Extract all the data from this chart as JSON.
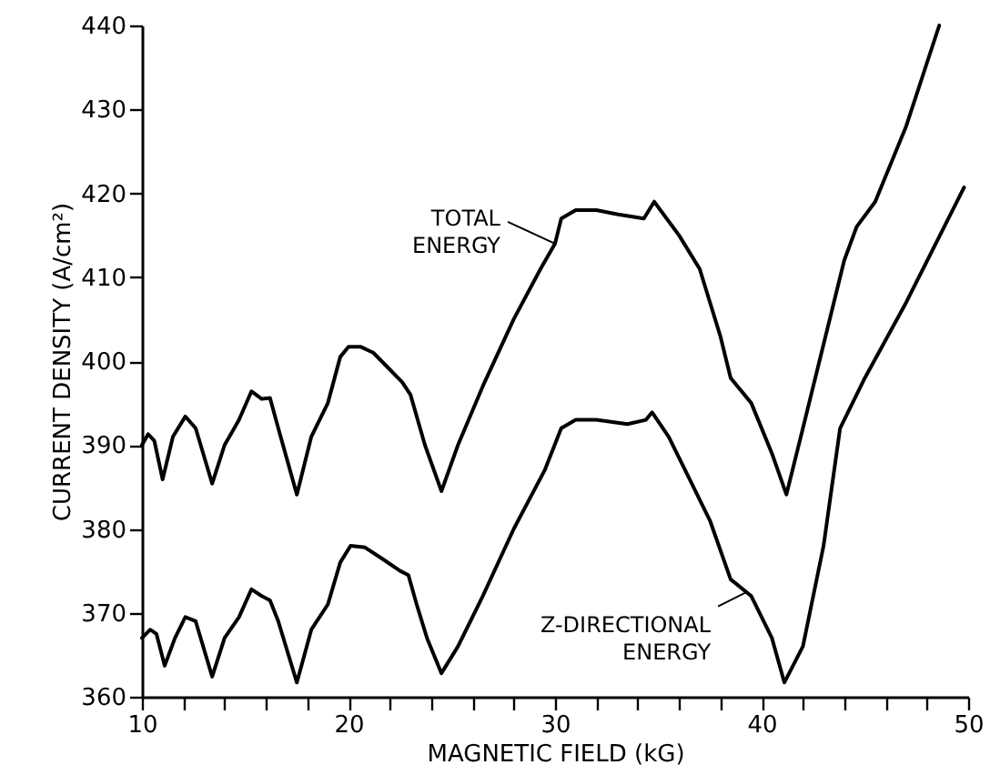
{
  "chart_data": {
    "type": "line",
    "xlabel": "MAGNETIC FIELD (kG)",
    "ylabel": "CURRENT DENSITY (A/cm²)",
    "xlim": [
      10,
      50
    ],
    "ylim": [
      360,
      440
    ],
    "xticks": [
      10,
      {
        "value": 12,
        "label": null
      },
      {
        "value": 14,
        "label": null
      },
      {
        "value": 16,
        "label": null
      },
      {
        "value": 18,
        "label": null
      },
      20,
      {
        "value": 22,
        "label": null
      },
      {
        "value": 24,
        "label": null
      },
      {
        "value": 26,
        "label": null
      },
      {
        "value": 28,
        "label": null
      },
      30,
      {
        "value": 32,
        "label": null
      },
      {
        "value": 34,
        "label": null
      },
      {
        "value": 36,
        "label": null
      },
      {
        "value": 38,
        "label": null
      },
      40,
      {
        "value": 42,
        "label": null
      },
      {
        "value": 44,
        "label": null
      },
      {
        "value": 46,
        "label": null
      },
      {
        "value": 48,
        "label": null
      },
      50
    ],
    "yticks": [
      360,
      370,
      380,
      390,
      400,
      410,
      420,
      430,
      440
    ],
    "grid": false,
    "legend": false,
    "marker": "none",
    "line_style": "solid",
    "series": [
      {
        "color": "#000000",
        "x": [
          10,
          10.3,
          10.6,
          11,
          11.5,
          12.1,
          12.6,
          13.4,
          14,
          14.7,
          15.3,
          15.8,
          16.2,
          16.6,
          17.5,
          18.2,
          19,
          19.6,
          20,
          20.6,
          21.2,
          22,
          22.6,
          23,
          23.7,
          24.5,
          25.3,
          26.5,
          28,
          29.3,
          30,
          30.3,
          31,
          32,
          33,
          34.3,
          34.8,
          36,
          37,
          38,
          38.5,
          39.5,
          40.5,
          41.2,
          42,
          43,
          44,
          44.6,
          45.5,
          47,
          48.6
        ],
        "values": [
          390,
          391.3,
          390.5,
          385.9,
          391,
          393.4,
          392,
          385.4,
          390,
          393,
          396.4,
          395.5,
          395.6,
          392,
          384.1,
          391,
          395,
          400.5,
          401.7,
          401.7,
          401,
          399,
          397.5,
          396,
          390,
          384.5,
          390,
          397,
          405,
          411,
          414,
          417,
          418,
          418,
          417.5,
          417,
          419,
          415,
          411,
          403,
          398,
          395,
          389,
          384.1,
          392,
          402,
          412,
          416,
          419,
          428,
          440
        ]
      },
      {
        "color": "#000000",
        "x": [
          10,
          10.4,
          10.7,
          11.1,
          11.6,
          12.1,
          12.6,
          13.4,
          14,
          14.7,
          15.3,
          15.8,
          16.2,
          16.6,
          17.5,
          18.2,
          19,
          19.6,
          20.1,
          20.8,
          21.6,
          22.5,
          22.9,
          23.3,
          23.8,
          24.5,
          25.3,
          26.5,
          28,
          29.5,
          30.3,
          31,
          32,
          33.5,
          34.4,
          34.7,
          35.5,
          36.5,
          37.5,
          38.5,
          39.5,
          40.5,
          41.1,
          42,
          43,
          43.8,
          45,
          47,
          49.8
        ],
        "values": [
          367,
          368,
          367.5,
          363.7,
          367,
          369.5,
          369,
          362.4,
          367,
          369.5,
          372.8,
          372,
          371.5,
          369,
          361.7,
          368,
          371,
          376,
          378,
          377.8,
          376.5,
          375,
          374.5,
          371,
          367,
          362.8,
          366,
          372,
          380,
          387,
          392,
          393,
          393,
          392.5,
          393,
          393.9,
          391,
          386,
          381,
          374,
          372,
          367,
          361.7,
          366,
          378,
          392,
          398,
          407,
          420.7
        ]
      }
    ],
    "annotations": [
      {
        "text": "TOTAL ENERGY",
        "x": 30,
        "y": 414
      },
      {
        "text": "Z-DIRECTIONAL ENERGY",
        "x": 39.3,
        "y": 372.5
      }
    ]
  }
}
